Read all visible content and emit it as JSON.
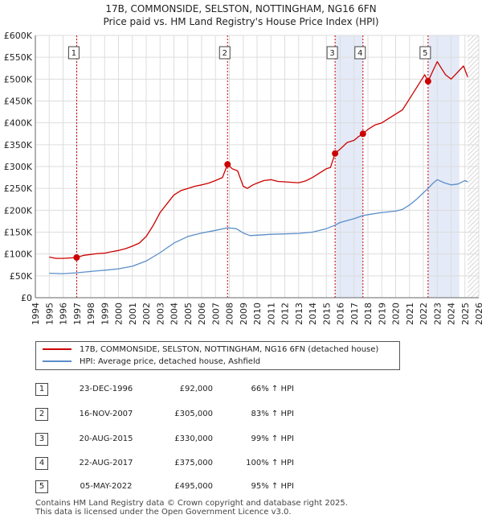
{
  "title_line1": "17B, COMMONSIDE, SELSTON, NOTTINGHAM, NG16 6FN",
  "title_line2": "Price paid vs. HM Land Registry's House Price Index (HPI)",
  "legend": {
    "property_label": "17B, COMMONSIDE, SELSTON, NOTTINGHAM, NG16 6FN (detached house)",
    "hpi_label": "HPI: Average price, detached house, Ashfield"
  },
  "colors": {
    "property": "#cc0000",
    "hpi": "#5b8ec9",
    "shade": "#e4eaf7",
    "hatch": "#c9c9c9",
    "grid": "#dddddd",
    "marker_line": "#cc0000"
  },
  "transactions": [
    {
      "num": "1",
      "date": "23-DEC-1996",
      "price": "£92,000",
      "hpi_pct": "66% ↑ HPI"
    },
    {
      "num": "2",
      "date": "16-NOV-2007",
      "price": "£305,000",
      "hpi_pct": "83% ↑ HPI"
    },
    {
      "num": "3",
      "date": "20-AUG-2015",
      "price": "£330,000",
      "hpi_pct": "99% ↑ HPI"
    },
    {
      "num": "4",
      "date": "22-AUG-2017",
      "price": "£375,000",
      "hpi_pct": "100% ↑ HPI"
    },
    {
      "num": "5",
      "date": "05-MAY-2022",
      "price": "£495,000",
      "hpi_pct": "95% ↑ HPI"
    }
  ],
  "footer_line1": "Contains HM Land Registry data © Crown copyright and database right 2025.",
  "footer_line2": "This data is licensed under the Open Government Licence v3.0.",
  "chart_data": {
    "type": "line",
    "title": "Price paid vs. HM Land Registry's House Price Index (HPI)",
    "xlim": [
      1994,
      2026
    ],
    "ylim": [
      0,
      600000
    ],
    "x_ticks": [
      1994,
      1995,
      1996,
      1997,
      1998,
      1999,
      2000,
      2001,
      2002,
      2003,
      2004,
      2005,
      2006,
      2007,
      2008,
      2009,
      2010,
      2011,
      2012,
      2013,
      2014,
      2015,
      2016,
      2017,
      2018,
      2019,
      2020,
      2021,
      2022,
      2023,
      2024,
      2025,
      2026
    ],
    "y_ticks": [
      0,
      50000,
      100000,
      150000,
      200000,
      250000,
      300000,
      350000,
      400000,
      450000,
      500000,
      550000,
      600000
    ],
    "y_tick_labels": [
      "£0",
      "£50K",
      "£100K",
      "£150K",
      "£200K",
      "£250K",
      "£300K",
      "£350K",
      "£400K",
      "£450K",
      "£500K",
      "£550K",
      "£600K"
    ],
    "shaded_ranges": [
      [
        2015.64,
        2017.64
      ],
      [
        2022.34,
        2024.6
      ]
    ],
    "data_end": 2025.2,
    "series": [
      {
        "name": "17B, COMMONSIDE, SELSTON, NOTTINGHAM, NG16 6FN (detached house)",
        "x": [
          1995.0,
          1995.5,
          1996.0,
          1996.5,
          1996.98,
          1997.5,
          1998.0,
          1998.5,
          1999.0,
          1999.5,
          2000.0,
          2000.5,
          2001.0,
          2001.5,
          2002.0,
          2002.5,
          2003.0,
          2003.5,
          2004.0,
          2004.5,
          2005.0,
          2005.5,
          2006.0,
          2006.5,
          2007.0,
          2007.5,
          2007.87,
          2008.2,
          2008.6,
          2009.0,
          2009.3,
          2009.7,
          2010.0,
          2010.5,
          2011.0,
          2011.5,
          2012.0,
          2012.5,
          2013.0,
          2013.5,
          2014.0,
          2014.5,
          2015.0,
          2015.3,
          2015.63,
          2016.0,
          2016.5,
          2017.0,
          2017.3,
          2017.64,
          2018.0,
          2018.5,
          2019.0,
          2019.5,
          2020.0,
          2020.5,
          2021.0,
          2021.5,
          2021.9,
          2022.1,
          2022.34,
          2022.7,
          2023.0,
          2023.3,
          2023.6,
          2024.0,
          2024.3,
          2024.6,
          2024.9,
          2025.2
        ],
        "values": [
          93000,
          90000,
          90000,
          91000,
          92000,
          97000,
          99000,
          101000,
          102000,
          105000,
          108000,
          112000,
          118000,
          125000,
          140000,
          165000,
          195000,
          215000,
          235000,
          245000,
          250000,
          255000,
          258000,
          262000,
          268000,
          275000,
          305000,
          295000,
          290000,
          255000,
          250000,
          258000,
          262000,
          268000,
          270000,
          266000,
          265000,
          264000,
          263000,
          267000,
          275000,
          285000,
          295000,
          298000,
          330000,
          340000,
          355000,
          360000,
          368000,
          375000,
          385000,
          395000,
          400000,
          410000,
          420000,
          430000,
          455000,
          480000,
          500000,
          510000,
          495000,
          520000,
          540000,
          525000,
          510000,
          500000,
          510000,
          520000,
          530000,
          505000
        ]
      },
      {
        "name": "HPI: Average price, detached house, Ashfield",
        "x": [
          1995.0,
          1996.0,
          1997.0,
          1998.0,
          1999.0,
          2000.0,
          2001.0,
          2002.0,
          2003.0,
          2004.0,
          2005.0,
          2006.0,
          2007.0,
          2007.87,
          2008.5,
          2009.0,
          2009.5,
          2010.0,
          2011.0,
          2012.0,
          2013.0,
          2014.0,
          2015.0,
          2015.63,
          2016.0,
          2017.0,
          2017.64,
          2018.0,
          2019.0,
          2020.0,
          2020.5,
          2021.0,
          2021.5,
          2022.0,
          2022.34,
          2022.7,
          2023.0,
          2023.5,
          2024.0,
          2024.5,
          2025.0,
          2025.2
        ],
        "values": [
          56000,
          55000,
          57000,
          60000,
          63000,
          66000,
          72000,
          84000,
          103000,
          125000,
          140000,
          148000,
          154000,
          160000,
          158000,
          148000,
          142000,
          143000,
          145000,
          146000,
          147000,
          150000,
          158000,
          166000,
          172000,
          181000,
          188000,
          190000,
          195000,
          198000,
          202000,
          212000,
          225000,
          240000,
          250000,
          262000,
          270000,
          263000,
          258000,
          260000,
          268000,
          265000
        ]
      }
    ],
    "sales": [
      {
        "label": "1",
        "x": 1996.98,
        "y": 92000
      },
      {
        "label": "2",
        "x": 2007.87,
        "y": 305000
      },
      {
        "label": "3",
        "x": 2015.63,
        "y": 330000
      },
      {
        "label": "4",
        "x": 2017.64,
        "y": 375000
      },
      {
        "label": "5",
        "x": 2022.34,
        "y": 495000
      }
    ],
    "legend_position": "below"
  }
}
